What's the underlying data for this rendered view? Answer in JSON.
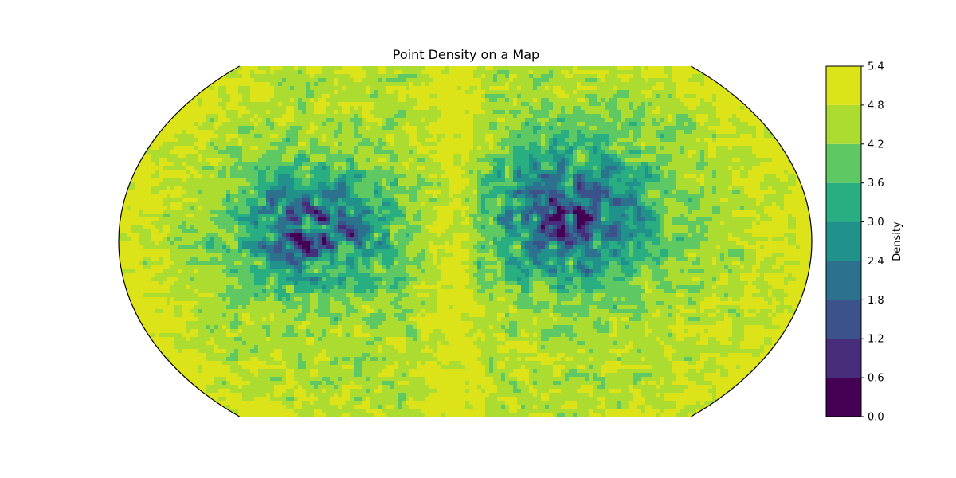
{
  "chart_data": {
    "type": "heatmap",
    "title": "Point Density on a Map",
    "projection": "Robinson",
    "colormap": "viridis",
    "colorbar": {
      "label": "Density",
      "levels": [
        0.0,
        0.6,
        1.2,
        1.8,
        2.4,
        3.0,
        3.6,
        4.2,
        4.8,
        5.4
      ],
      "tick_labels": [
        "0.0",
        "0.6",
        "1.2",
        "1.8",
        "2.4",
        "3.0",
        "3.6",
        "4.2",
        "4.8",
        "5.4"
      ],
      "colors": [
        "#440154",
        "#472d7b",
        "#3b528b",
        "#2c728e",
        "#21918c",
        "#28ae80",
        "#5ec962",
        "#addc30",
        "#dce319"
      ],
      "placement": "right"
    },
    "clusters": [
      {
        "lon": -85,
        "lat": 5,
        "lon_spread": 50,
        "lat_spread": 30
      },
      {
        "lon": 60,
        "lat": 12,
        "lon_spread": 55,
        "lat_spread": 35
      }
    ],
    "vmin": 0.0,
    "vmax": 5.4
  }
}
